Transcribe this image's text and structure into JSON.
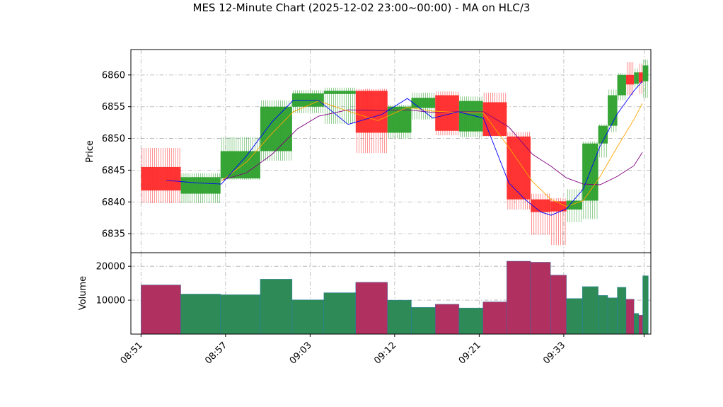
{
  "chart_data": {
    "type": "ohlc",
    "title": "MES 12-Minute Chart (2025-12-02 23:00~00:00) - MA on HLC/3",
    "price_panel": {
      "ylabel": "Price",
      "ylim": [
        6832,
        6864
      ],
      "yticks": [
        6835,
        6840,
        6845,
        6850,
        6855,
        6860
      ],
      "grid": true
    },
    "volume_panel": {
      "ylabel": "Volume",
      "ylim": [
        0,
        24000
      ],
      "yticks": [
        10000,
        20000
      ],
      "grid": true
    },
    "x_tick_labels": [
      "08:51",
      "08:57",
      "09:03",
      "09:12",
      "09:21",
      "09:33"
    ],
    "up_color": "#2ca02c",
    "down_color": "#ff2a2a",
    "volume_up_color": "#2e8b57",
    "volume_down_color": "#b03060",
    "series": [
      {
        "name": "MA fast",
        "color": "#0000ff"
      },
      {
        "name": "MA mid",
        "color": "#ffa500"
      },
      {
        "name": "MA slow",
        "color": "#800080"
      }
    ],
    "candles": [
      {
        "o": 6845.5,
        "h": 6848.5,
        "l": 6839.8,
        "c": 6841.8,
        "v": 14500
      },
      {
        "o": 6841.3,
        "h": 6844.5,
        "l": 6839.8,
        "c": 6843.9,
        "v": 11800
      },
      {
        "o": 6843.7,
        "h": 6850.2,
        "l": 6843.5,
        "c": 6848.0,
        "v": 11600
      },
      {
        "o": 6848.0,
        "h": 6856.0,
        "l": 6846.5,
        "c": 6855.0,
        "v": 16200
      },
      {
        "o": 6855.0,
        "h": 6857.6,
        "l": 6854.0,
        "c": 6857.1,
        "v": 10100
      },
      {
        "o": 6857.0,
        "h": 6858.0,
        "l": 6852.3,
        "c": 6857.5,
        "v": 12200
      },
      {
        "o": 6857.5,
        "h": 6857.8,
        "l": 6847.7,
        "c": 6850.9,
        "v": 15300
      },
      {
        "o": 6850.9,
        "h": 6855.3,
        "l": 6850.0,
        "c": 6855.0,
        "v": 10000
      },
      {
        "o": 6854.8,
        "h": 6857.2,
        "l": 6853.0,
        "c": 6856.4,
        "v": 7900
      },
      {
        "o": 6856.8,
        "h": 6857.4,
        "l": 6850.5,
        "c": 6851.2,
        "v": 8800
      },
      {
        "o": 6851.1,
        "h": 6856.6,
        "l": 6850.2,
        "c": 6855.9,
        "v": 7700
      },
      {
        "o": 6855.7,
        "h": 6857.2,
        "l": 6850.3,
        "c": 6850.4,
        "v": 9500
      },
      {
        "o": 6850.3,
        "h": 6851.0,
        "l": 6838.8,
        "c": 6840.4,
        "v": 21500
      },
      {
        "o": 6840.4,
        "h": 6841.3,
        "l": 6834.8,
        "c": 6838.4,
        "v": 21200
      },
      {
        "o": 6840.1,
        "h": 6840.6,
        "l": 6833.2,
        "c": 6838.5,
        "v": 17400
      },
      {
        "o": 6838.8,
        "h": 6842.0,
        "l": 6836.8,
        "c": 6840.2,
        "v": 10500
      },
      {
        "o": 6840.2,
        "h": 6849.5,
        "l": 6837.3,
        "c": 6849.2,
        "v": 14000
      },
      {
        "o": 6849.2,
        "h": 6852.2,
        "l": 6847.0,
        "c": 6852.0,
        "v": 11400
      },
      {
        "o": 6852.0,
        "h": 6857.7,
        "l": 6851.0,
        "c": 6856.8,
        "v": 10700
      },
      {
        "o": 6856.8,
        "h": 6860.3,
        "l": 6856.0,
        "c": 6860.0,
        "v": 13800
      },
      {
        "o": 6860.0,
        "h": 6862.0,
        "l": 6856.8,
        "c": 6858.5,
        "v": 10300
      },
      {
        "o": 6858.6,
        "h": 6861.0,
        "l": 6858.0,
        "c": 6860.4,
        "v": 6100
      },
      {
        "o": 6860.4,
        "h": 6861.8,
        "l": 6857.0,
        "c": 6858.8,
        "v": 5600
      },
      {
        "o": 6859.0,
        "h": 6862.4,
        "l": 6856.4,
        "c": 6861.5,
        "v": 17200
      }
    ],
    "ma_fast": [
      [
        3.0,
        6843.4
      ],
      [
        6.5,
        6843.0
      ],
      [
        9.5,
        6842.8
      ],
      [
        12.5,
        6847.3
      ],
      [
        15.5,
        6852.6
      ],
      [
        18.0,
        6856.0
      ],
      [
        21.0,
        6856.0
      ],
      [
        24.5,
        6852.2
      ],
      [
        28.5,
        6853.8
      ],
      [
        31.5,
        6856.3
      ],
      [
        34.5,
        6853.2
      ],
      [
        37.5,
        6854.2
      ],
      [
        40.5,
        6853.2
      ],
      [
        43.5,
        6843.0
      ],
      [
        45.5,
        6840.3
      ],
      [
        47.3,
        6838.4
      ],
      [
        48.5,
        6837.9
      ],
      [
        50.3,
        6838.9
      ],
      [
        52.3,
        6842.0
      ],
      [
        54.3,
        6848.8
      ],
      [
        56.3,
        6853.8
      ],
      [
        58.3,
        6857.5
      ],
      [
        59.3,
        6859.0
      ]
    ],
    "ma_mid": [
      [
        9.5,
        6843.3
      ],
      [
        12.5,
        6846.3
      ],
      [
        15.5,
        6850.8
      ],
      [
        18.0,
        6854.2
      ],
      [
        21.0,
        6855.9
      ],
      [
        24.5,
        6854.3
      ],
      [
        28.0,
        6852.8
      ],
      [
        31.5,
        6854.9
      ],
      [
        34.5,
        6854.3
      ],
      [
        37.5,
        6854.1
      ],
      [
        40.5,
        6854.0
      ],
      [
        43.5,
        6848.6
      ],
      [
        46.3,
        6843.2
      ],
      [
        48.5,
        6840.4
      ],
      [
        50.3,
        6839.3
      ],
      [
        52.3,
        6840.2
      ],
      [
        54.3,
        6844.0
      ],
      [
        56.3,
        6848.6
      ],
      [
        58.3,
        6853.0
      ],
      [
        59.3,
        6855.5
      ]
    ],
    "ma_slow": [
      [
        9.5,
        6843.4
      ],
      [
        12.5,
        6844.6
      ],
      [
        15.5,
        6847.5
      ],
      [
        18.5,
        6851.5
      ],
      [
        21.0,
        6853.5
      ],
      [
        24.5,
        6854.5
      ],
      [
        28.5,
        6854.4
      ],
      [
        31.5,
        6854.5
      ],
      [
        34.5,
        6854.1
      ],
      [
        37.5,
        6854.2
      ],
      [
        40.5,
        6854.2
      ],
      [
        43.5,
        6851.8
      ],
      [
        46.3,
        6847.5
      ],
      [
        48.5,
        6845.6
      ],
      [
        50.3,
        6843.8
      ],
      [
        52.3,
        6842.8
      ],
      [
        54.3,
        6842.7
      ],
      [
        56.3,
        6844.0
      ],
      [
        58.3,
        6845.7
      ],
      [
        59.3,
        6847.8
      ]
    ]
  }
}
